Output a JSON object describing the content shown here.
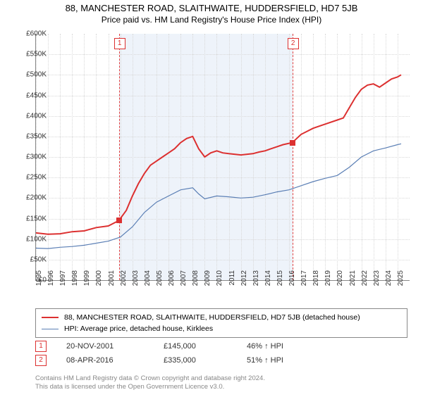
{
  "title": "88, MANCHESTER ROAD, SLAITHWAITE, HUDDERSFIELD, HD7 5JB",
  "subtitle": "Price paid vs. HM Land Registry's House Price Index (HPI)",
  "chart": {
    "type": "line",
    "x_start": 1995,
    "x_end": 2026,
    "ylim": [
      0,
      600000
    ],
    "ytick_step": 50000,
    "xticks": [
      1995,
      1996,
      1997,
      1998,
      1999,
      2000,
      2001,
      2002,
      2003,
      2004,
      2005,
      2006,
      2007,
      2008,
      2009,
      2010,
      2011,
      2012,
      2013,
      2014,
      2015,
      2016,
      2017,
      2018,
      2019,
      2020,
      2021,
      2022,
      2023,
      2024,
      2025
    ],
    "ytick_labels": [
      "£0",
      "£50K",
      "£100K",
      "£150K",
      "£200K",
      "£250K",
      "£300K",
      "£350K",
      "£400K",
      "£450K",
      "£500K",
      "£550K",
      "£600K"
    ],
    "grid_color": "#d8d8d8",
    "background_color": "#ffffff",
    "series": [
      {
        "name": "property",
        "label": "88, MANCHESTER ROAD, SLAITHWAITE, HUDDERSFIELD, HD7 5JB (detached house)",
        "color": "#dc3030",
        "width": 2,
        "data": [
          [
            1995,
            115000
          ],
          [
            1996,
            112000
          ],
          [
            1997,
            113000
          ],
          [
            1998,
            118000
          ],
          [
            1999,
            120000
          ],
          [
            2000,
            128000
          ],
          [
            2001,
            132000
          ],
          [
            2001.88,
            145000
          ],
          [
            2002.5,
            170000
          ],
          [
            2003,
            205000
          ],
          [
            2003.5,
            235000
          ],
          [
            2004,
            260000
          ],
          [
            2004.5,
            280000
          ],
          [
            2005,
            290000
          ],
          [
            2005.5,
            300000
          ],
          [
            2006,
            310000
          ],
          [
            2006.5,
            320000
          ],
          [
            2007,
            335000
          ],
          [
            2007.5,
            345000
          ],
          [
            2008,
            350000
          ],
          [
            2008.5,
            320000
          ],
          [
            2009,
            300000
          ],
          [
            2009.5,
            310000
          ],
          [
            2010,
            315000
          ],
          [
            2010.5,
            310000
          ],
          [
            2011,
            308000
          ],
          [
            2012,
            305000
          ],
          [
            2013,
            308000
          ],
          [
            2013.5,
            312000
          ],
          [
            2014,
            315000
          ],
          [
            2014.5,
            320000
          ],
          [
            2015,
            325000
          ],
          [
            2015.5,
            330000
          ],
          [
            2016.27,
            335000
          ],
          [
            2017,
            355000
          ],
          [
            2018,
            370000
          ],
          [
            2019,
            380000
          ],
          [
            2020,
            390000
          ],
          [
            2020.5,
            395000
          ],
          [
            2021,
            420000
          ],
          [
            2021.5,
            445000
          ],
          [
            2022,
            465000
          ],
          [
            2022.5,
            475000
          ],
          [
            2023,
            478000
          ],
          [
            2023.5,
            470000
          ],
          [
            2024,
            480000
          ],
          [
            2024.5,
            490000
          ],
          [
            2025,
            495000
          ],
          [
            2025.3,
            500000
          ]
        ]
      },
      {
        "name": "hpi",
        "label": "HPI: Average price, detached house, Kirklees",
        "color": "#5b7fb5",
        "width": 1.2,
        "data": [
          [
            1995,
            78000
          ],
          [
            1996,
            77000
          ],
          [
            1997,
            80000
          ],
          [
            1998,
            82000
          ],
          [
            1999,
            85000
          ],
          [
            2000,
            90000
          ],
          [
            2001,
            95000
          ],
          [
            2002,
            105000
          ],
          [
            2003,
            130000
          ],
          [
            2004,
            165000
          ],
          [
            2005,
            190000
          ],
          [
            2006,
            205000
          ],
          [
            2007,
            220000
          ],
          [
            2008,
            225000
          ],
          [
            2008.5,
            210000
          ],
          [
            2009,
            198000
          ],
          [
            2010,
            205000
          ],
          [
            2011,
            203000
          ],
          [
            2012,
            200000
          ],
          [
            2013,
            202000
          ],
          [
            2014,
            208000
          ],
          [
            2015,
            215000
          ],
          [
            2016,
            220000
          ],
          [
            2017,
            230000
          ],
          [
            2018,
            240000
          ],
          [
            2019,
            248000
          ],
          [
            2020,
            255000
          ],
          [
            2021,
            275000
          ],
          [
            2022,
            300000
          ],
          [
            2023,
            315000
          ],
          [
            2024,
            322000
          ],
          [
            2025,
            330000
          ],
          [
            2025.3,
            332000
          ]
        ]
      }
    ],
    "sales": [
      {
        "id": "1",
        "year": 2001.88,
        "price": 145000
      },
      {
        "id": "2",
        "year": 2016.27,
        "price": 335000
      }
    ],
    "sales_band": {
      "from": 2001.88,
      "to": 2016.27,
      "color": "#eef3fa"
    }
  },
  "legend": {
    "rows": [
      {
        "color": "#dc3030",
        "width": 2,
        "label_path": "chart.series.0.label"
      },
      {
        "color": "#5b7fb5",
        "width": 1.2,
        "label_path": "chart.series.1.label"
      }
    ]
  },
  "sales_table": [
    {
      "id": "1",
      "date": "20-NOV-2001",
      "price": "£145,000",
      "change": "46% ↑ HPI"
    },
    {
      "id": "2",
      "date": "08-APR-2016",
      "price": "£335,000",
      "change": "51% ↑ HPI"
    }
  ],
  "footnote_line1": "Contains HM Land Registry data © Crown copyright and database right 2024.",
  "footnote_line2": "This data is licensed under the Open Government Licence v3.0."
}
